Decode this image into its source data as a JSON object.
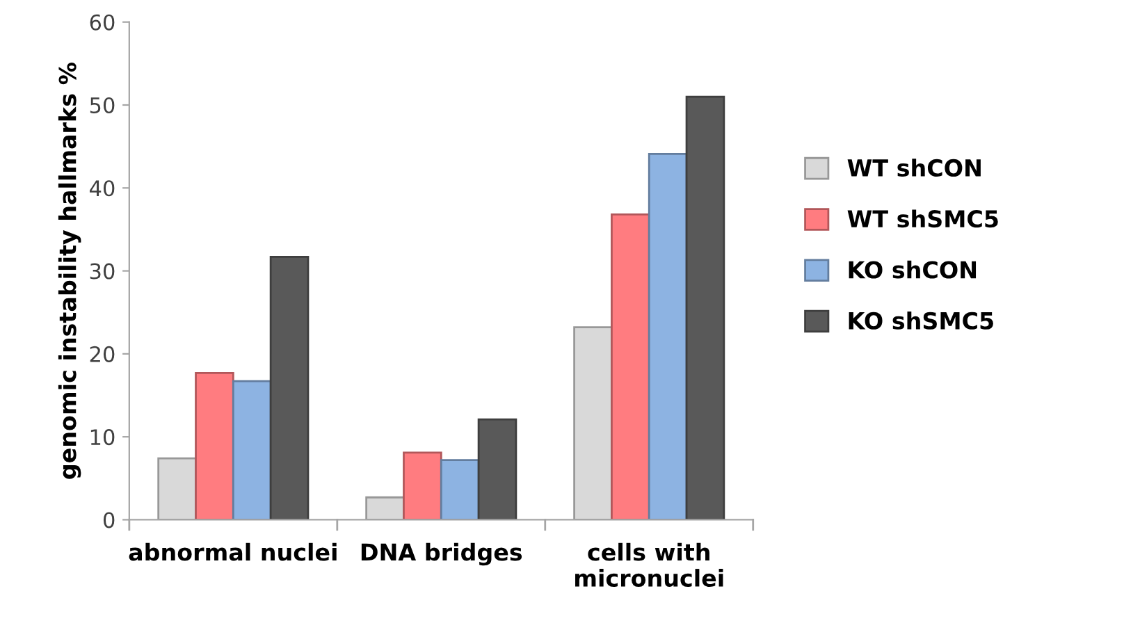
{
  "chart_data": {
    "type": "bar",
    "ylabel": "genomic instability hallmarks %",
    "categories": [
      "abnormal nuclei",
      "DNA bridges",
      "cells with\nmicronuclei"
    ],
    "series": [
      {
        "name": "WT shCON",
        "color": "#d9d9d9",
        "values": [
          7.4,
          2.7,
          23.2
        ]
      },
      {
        "name": "WT shSMC5",
        "color": "#ff7c80",
        "values": [
          17.7,
          8.1,
          36.8
        ]
      },
      {
        "name": "KO shCON",
        "color": "#8db3e2",
        "values": [
          16.7,
          7.2,
          44.1
        ]
      },
      {
        "name": "KO shSMC5",
        "color": "#595959",
        "values": [
          31.7,
          12.1,
          51.0
        ]
      }
    ],
    "ylim": [
      0,
      60
    ],
    "yticks": [
      0,
      10,
      20,
      30,
      40,
      50,
      60
    ],
    "grid": false,
    "legend": "right"
  }
}
